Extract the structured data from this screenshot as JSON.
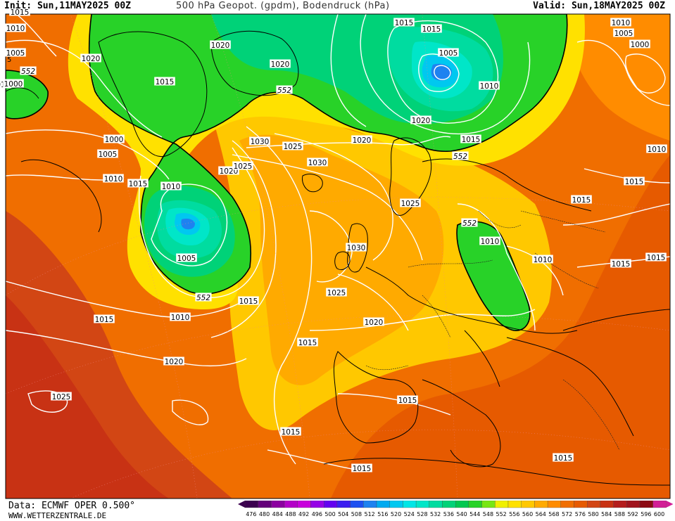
{
  "header": {
    "init": "Init: Sun,11MAY2025 00Z",
    "title": "500 hPa Geopot. (gpdm), Bodendruck (hPa)",
    "valid": "Valid: Sun,18MAY2025 00Z"
  },
  "footer": {
    "data_source": "Data: ECMWF OPER 0.500°",
    "website": "WWW.WETTERZENTRALE.DE"
  },
  "legend": {
    "values": [
      "476",
      "480",
      "484",
      "488",
      "492",
      "496",
      "500",
      "504",
      "508",
      "512",
      "516",
      "520",
      "524",
      "528",
      "532",
      "536",
      "540",
      "544",
      "548",
      "552",
      "556",
      "560",
      "564",
      "568",
      "572",
      "576",
      "580",
      "584",
      "588",
      "592",
      "596",
      "600"
    ],
    "colors": [
      "#3c0050",
      "#64007a",
      "#8c00a0",
      "#b400c8",
      "#c800dc",
      "#9600e6",
      "#6400f0",
      "#3c1ef0",
      "#1e50f0",
      "#1e82f0",
      "#00aaf0",
      "#00c8f0",
      "#00e6e6",
      "#00e6c8",
      "#00dca0",
      "#00d278",
      "#00c850",
      "#28d228",
      "#78e614",
      "#f0f000",
      "#ffe100",
      "#ffc800",
      "#ffaa00",
      "#ff8c00",
      "#f06e00",
      "#e65a00",
      "#d24614",
      "#c83214",
      "#b41e1e",
      "#a0141e",
      "#8c0a14",
      "#d21e96"
    ]
  },
  "map": {
    "isobar_labels": [
      {
        "id": "c1",
        "text": "1015"
      },
      {
        "id": "c2",
        "text": "1010"
      },
      {
        "id": "c3",
        "text": "1005"
      },
      {
        "id": "c4",
        "text": "1010"
      },
      {
        "id": "c5",
        "text": "1000"
      },
      {
        "id": "c6",
        "text": "1020"
      },
      {
        "id": "c7",
        "text": "1015"
      },
      {
        "id": "c8",
        "text": "1020"
      },
      {
        "id": "c9",
        "text": "1000"
      },
      {
        "id": "c10",
        "text": "1005"
      },
      {
        "id": "c11",
        "text": "1010"
      },
      {
        "id": "c12",
        "text": "1015"
      },
      {
        "id": "c13",
        "text": "1010"
      },
      {
        "id": "c14",
        "text": "1020"
      },
      {
        "id": "c15",
        "text": "1020"
      },
      {
        "id": "c16",
        "text": "1015"
      },
      {
        "id": "c17",
        "text": "1005"
      },
      {
        "id": "c18",
        "text": "1010"
      },
      {
        "id": "c19",
        "text": "1015"
      },
      {
        "id": "c20",
        "text": "1030"
      },
      {
        "id": "c21",
        "text": "1025"
      },
      {
        "id": "c22",
        "text": "1025"
      },
      {
        "id": "c23",
        "text": "1030"
      },
      {
        "id": "c24",
        "text": "1020"
      },
      {
        "id": "c25",
        "text": "1020"
      },
      {
        "id": "c26",
        "text": "1015"
      },
      {
        "id": "c27",
        "text": "1010"
      },
      {
        "id": "c28",
        "text": "1005"
      },
      {
        "id": "c29",
        "text": "1000"
      },
      {
        "id": "c30",
        "text": "1010"
      },
      {
        "id": "c31",
        "text": "1015"
      },
      {
        "id": "c32",
        "text": "1025"
      },
      {
        "id": "c33",
        "text": "1030"
      },
      {
        "id": "c34",
        "text": "1025"
      },
      {
        "id": "c35",
        "text": "1015"
      },
      {
        "id": "c36",
        "text": "1010"
      },
      {
        "id": "c37",
        "text": "1005"
      },
      {
        "id": "c38",
        "text": "1010"
      },
      {
        "id": "c39",
        "text": "1015"
      },
      {
        "id": "c40",
        "text": "1015"
      },
      {
        "id": "c41",
        "text": "1015"
      },
      {
        "id": "c42",
        "text": "1020"
      },
      {
        "id": "c43",
        "text": "1015"
      },
      {
        "id": "c44",
        "text": "1020"
      },
      {
        "id": "c45",
        "text": "1025"
      },
      {
        "id": "c46",
        "text": "1015"
      },
      {
        "id": "c47",
        "text": "1015"
      },
      {
        "id": "c48",
        "text": "1015"
      },
      {
        "id": "c49",
        "text": "1010"
      },
      {
        "id": "c50",
        "text": "1015"
      },
      {
        "id": "c51",
        "text": "1015"
      }
    ],
    "geopot_labels": [
      {
        "id": "g1",
        "text": "552"
      },
      {
        "id": "g2",
        "text": "552"
      },
      {
        "id": "g3",
        "text": "552"
      },
      {
        "id": "g4",
        "text": "552"
      },
      {
        "id": "g5",
        "text": "552"
      }
    ],
    "edge_label": "5"
  }
}
